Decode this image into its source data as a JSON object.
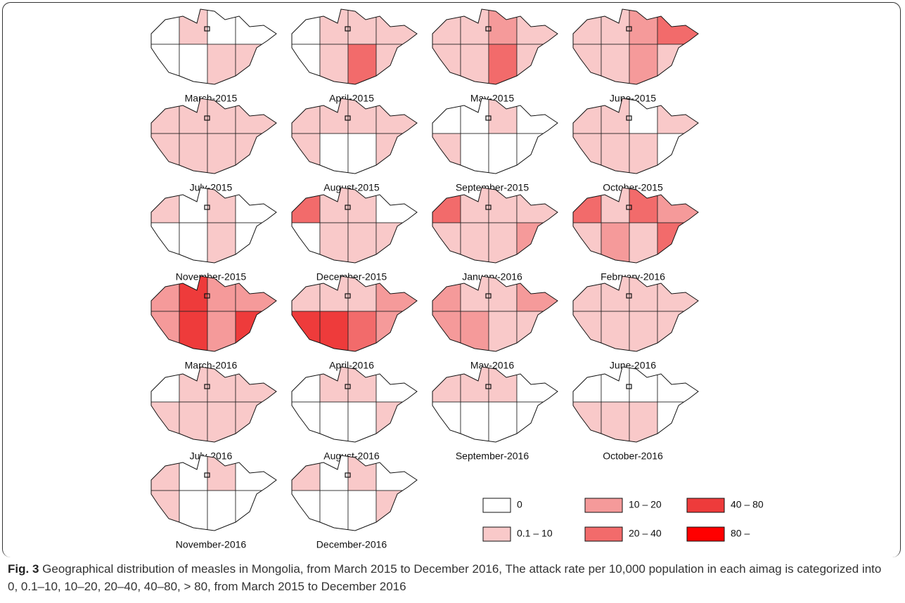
{
  "panels": [
    {
      "label": "March-2015",
      "levels": [
        0,
        1,
        0,
        0,
        0,
        0,
        1,
        1
      ]
    },
    {
      "label": "April-2015",
      "levels": [
        0,
        1,
        1,
        1,
        0,
        1,
        3,
        1
      ]
    },
    {
      "label": "May-2015",
      "levels": [
        1,
        1,
        2,
        1,
        1,
        1,
        3,
        1
      ]
    },
    {
      "label": "June-2015",
      "levels": [
        1,
        1,
        2,
        3,
        1,
        1,
        2,
        1
      ]
    },
    {
      "label": "July-2015",
      "levels": [
        1,
        1,
        1,
        1,
        1,
        1,
        1,
        1
      ]
    },
    {
      "label": "August-2015",
      "levels": [
        1,
        1,
        1,
        1,
        1,
        0,
        0,
        1
      ]
    },
    {
      "label": "September-2015",
      "levels": [
        0,
        0,
        1,
        0,
        1,
        0,
        0,
        0
      ]
    },
    {
      "label": "October-2015",
      "levels": [
        1,
        1,
        0,
        1,
        1,
        1,
        1,
        0
      ]
    },
    {
      "label": "November-2015",
      "levels": [
        1,
        0,
        1,
        0,
        0,
        0,
        1,
        0
      ]
    },
    {
      "label": "December-2015",
      "levels": [
        3,
        1,
        1,
        0,
        0,
        1,
        1,
        1
      ]
    },
    {
      "label": "January-2016",
      "levels": [
        3,
        1,
        1,
        1,
        1,
        1,
        1,
        2
      ]
    },
    {
      "label": "February-2016",
      "levels": [
        3,
        1,
        3,
        2,
        1,
        2,
        1,
        3
      ]
    },
    {
      "label": "March-2016",
      "levels": [
        2,
        4,
        2,
        2,
        2,
        4,
        2,
        4
      ]
    },
    {
      "label": "April-2016",
      "levels": [
        1,
        1,
        1,
        2,
        4,
        4,
        3,
        2
      ]
    },
    {
      "label": "May-2016",
      "levels": [
        2,
        1,
        1,
        2,
        2,
        2,
        1,
        1
      ]
    },
    {
      "label": "June-2016",
      "levels": [
        1,
        1,
        1,
        1,
        1,
        1,
        1,
        1
      ]
    },
    {
      "label": "July-2016",
      "levels": [
        0,
        1,
        1,
        1,
        1,
        1,
        1,
        1
      ]
    },
    {
      "label": "August-2016",
      "levels": [
        0,
        1,
        1,
        0,
        0,
        0,
        0,
        1
      ]
    },
    {
      "label": "September-2016",
      "levels": [
        1,
        1,
        1,
        0,
        0,
        0,
        0,
        0
      ]
    },
    {
      "label": "October-2016",
      "levels": [
        0,
        0,
        0,
        0,
        1,
        1,
        1,
        0
      ]
    },
    {
      "label": "November-2016",
      "levels": [
        1,
        0,
        1,
        0,
        1,
        0,
        0,
        0
      ]
    },
    {
      "label": "December-2016",
      "levels": [
        1,
        0,
        1,
        0,
        0,
        0,
        0,
        1
      ]
    }
  ],
  "legend": [
    {
      "label": "0",
      "color": "#ffffff"
    },
    {
      "label": "0.1 – 10",
      "color": "#f9c9c9"
    },
    {
      "label": "10 – 20",
      "color": "#f59a9a"
    },
    {
      "label": "20 – 40",
      "color": "#f26b6b"
    },
    {
      "label": "40 – 80",
      "color": "#ee3b3b"
    },
    {
      "label": "80 –",
      "color": "#ff0000"
    }
  ],
  "caption": {
    "label": "Fig. 3",
    "text": "Geographical distribution of measles in Mongolia, from March 2015 to December 2016, The attack rate per 10,000 population in each aimag is categorized into 0, 0.1–10, 10–20, 20–40, 40–80, > 80, from March 2015 to December 2016"
  }
}
